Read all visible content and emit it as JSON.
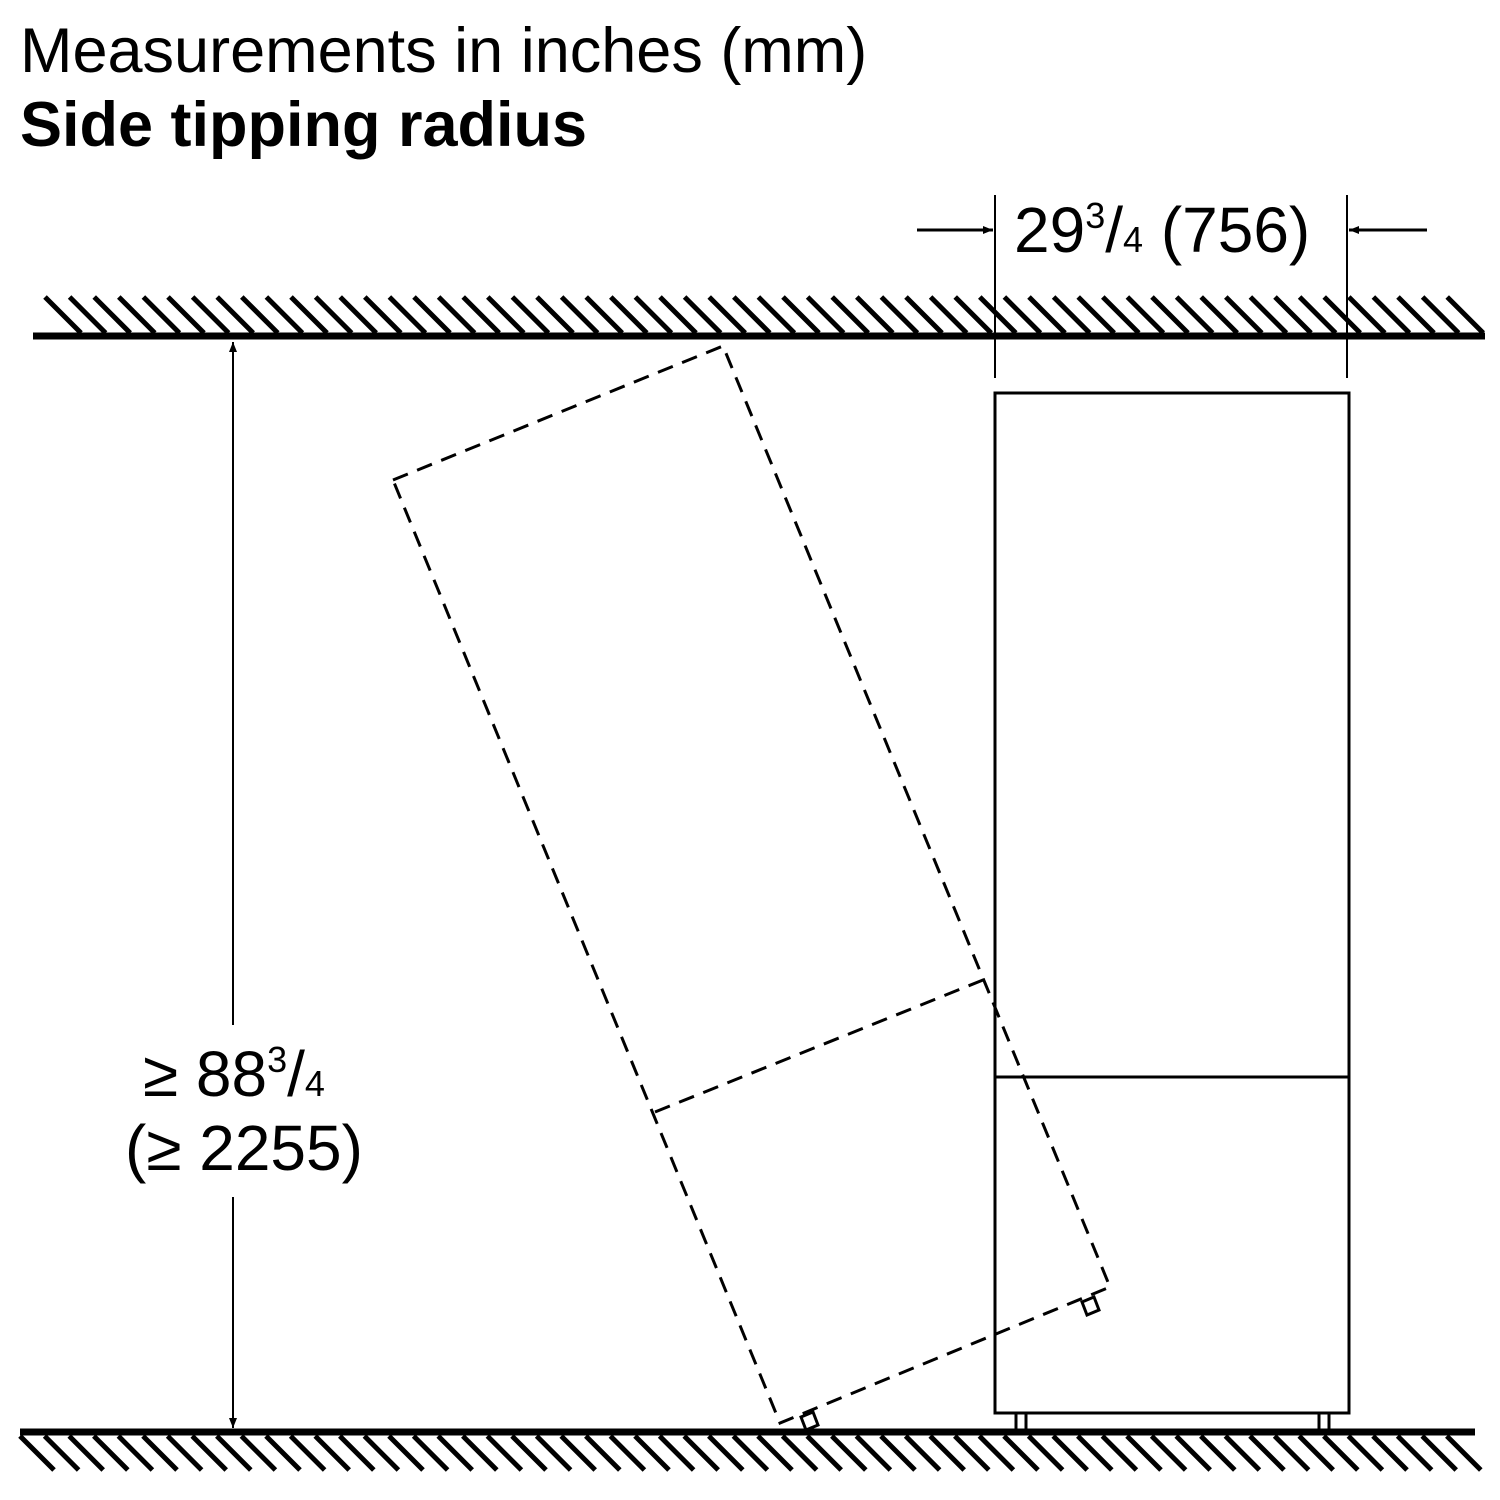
{
  "header": {
    "units": "Measurements in inches (mm)",
    "title": "Side tipping radius"
  },
  "dimensions": {
    "width": {
      "whole": "29",
      "num": "3",
      "den": "4",
      "mm": "(756)"
    },
    "height": {
      "prefix": "≥ ",
      "whole": "88",
      "num": "3",
      "den": "4",
      "mm": "(≥ 2255)"
    }
  }
}
